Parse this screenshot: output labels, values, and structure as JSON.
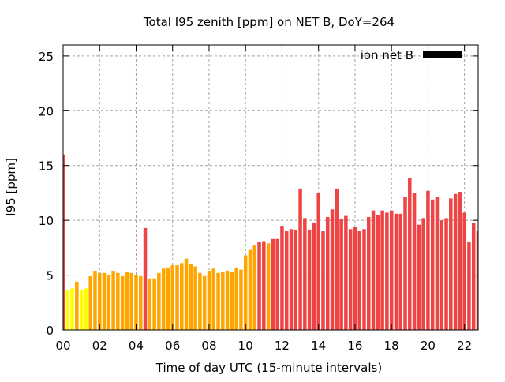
{
  "chart_data": {
    "type": "bar",
    "title": "Total I95 zenith [ppm] on NET B, DoY=264",
    "xlabel": "Time of day UTC (15-minute intervals)",
    "ylabel": "I95 [ppm]",
    "xlim": [
      0,
      22.75
    ],
    "ylim": [
      0,
      26
    ],
    "xticks": [
      "00",
      "02",
      "04",
      "06",
      "08",
      "10",
      "12",
      "14",
      "16",
      "18",
      "20",
      "22"
    ],
    "yticks": [
      0,
      5,
      10,
      15,
      20,
      25
    ],
    "grid": true,
    "legend": {
      "label": "ion net B",
      "position": "top-right",
      "color": "#000000"
    },
    "color_scale": {
      "low": "#ffff00",
      "mid": "#ffa500",
      "high": "#ee4444"
    },
    "interval_hours": 0.25,
    "values": [
      16.0,
      3.6,
      3.8,
      4.4,
      3.6,
      3.8,
      4.9,
      5.4,
      5.2,
      5.2,
      5.0,
      5.4,
      5.2,
      4.9,
      5.3,
      5.2,
      5.0,
      4.9,
      9.3,
      4.7,
      4.7,
      5.2,
      5.6,
      5.7,
      5.9,
      5.9,
      6.1,
      6.5,
      6.0,
      5.8,
      5.2,
      4.9,
      5.4,
      5.6,
      5.2,
      5.3,
      5.4,
      5.3,
      5.7,
      5.5,
      6.8,
      7.3,
      7.7,
      8.0,
      8.1,
      7.9,
      8.3,
      8.3,
      9.5,
      9.0,
      9.2,
      9.1,
      12.9,
      10.2,
      9.1,
      9.8,
      12.5,
      9.0,
      10.3,
      11.0,
      12.9,
      10.1,
      10.4,
      9.2,
      9.4,
      9.0,
      9.2,
      10.3,
      10.9,
      10.5,
      10.9,
      10.7,
      10.9,
      10.6,
      10.6,
      12.1,
      13.9,
      12.5,
      9.6,
      10.2,
      12.7,
      11.9,
      12.1,
      10.0,
      10.2,
      12.0,
      12.4,
      12.6,
      10.7,
      8.0,
      9.8,
      9.0
    ]
  }
}
